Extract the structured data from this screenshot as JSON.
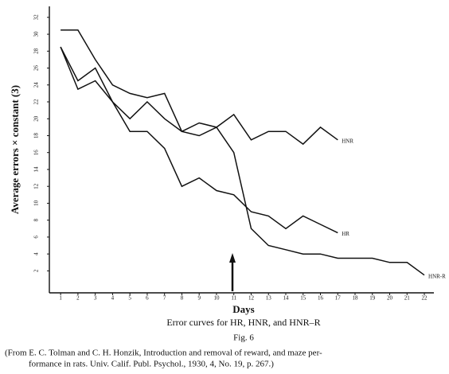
{
  "chart_data": {
    "type": "line",
    "y_label": "Average errors × constant (3)",
    "x_label": "Days",
    "caption": "Error curves for HR, HNR, and HNR–R",
    "figure": "Fig. 6",
    "source": [
      "(From E. C. Tolman and C. H. Honzik, Introduction and removal of reward, and maze per-",
      "formance in rats.  Univ. Calif. Publ. Psychol., 1930, 4, No. 19, p. 267.)"
    ],
    "x": [
      1,
      2,
      3,
      4,
      5,
      6,
      7,
      8,
      9,
      10,
      11,
      12,
      13,
      14,
      15,
      16,
      17,
      18,
      19,
      20,
      21,
      22
    ],
    "series": [
      {
        "name": "HNR",
        "color": "#111111",
        "values": [
          28.5,
          23.5,
          24.5,
          22,
          20,
          22,
          20,
          18.5,
          19.5,
          19,
          20.5,
          17.5,
          18.5,
          18.5,
          17,
          19,
          17.5,
          null,
          null,
          null,
          null,
          null
        ]
      },
      {
        "name": "HR",
        "color": "#111111",
        "values": [
          28.5,
          24.5,
          26,
          22,
          18.5,
          18.5,
          16.5,
          12,
          13,
          11.5,
          11,
          9,
          8.5,
          7,
          8.5,
          7.5,
          6.5,
          null,
          null,
          null,
          null,
          null
        ]
      },
      {
        "name": "HNR-R",
        "color": "#111111",
        "values": [
          30.5,
          30.5,
          27,
          24,
          23,
          22.5,
          23,
          18.5,
          18,
          19,
          16,
          7,
          5,
          4.5,
          4,
          4,
          3.5,
          3.5,
          3.5,
          3,
          3,
          1.5
        ]
      }
    ],
    "xlim": [
      0.35,
      22.55
    ],
    "ylim": [
      -0.6,
      33.3
    ],
    "xticks": [
      1,
      2,
      3,
      4,
      5,
      6,
      7,
      8,
      9,
      10,
      11,
      12,
      13,
      14,
      15,
      16,
      17,
      18,
      19,
      20,
      21,
      22
    ],
    "yticks": [
      2,
      4,
      6,
      8,
      10,
      12,
      14,
      16,
      18,
      20,
      22,
      24,
      26,
      28,
      30,
      32
    ],
    "grid": false
  }
}
